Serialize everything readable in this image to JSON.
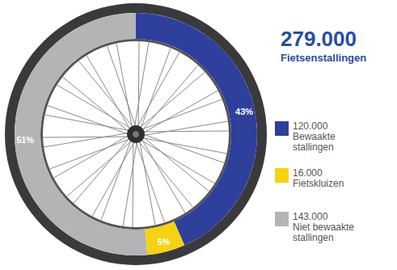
{
  "chart_data": {
    "type": "pie",
    "total": {
      "value": 279000,
      "label": "279.000"
    },
    "title": "Fietsenstallingen",
    "categories": [
      "Bewaakte stallingen",
      "Fietskluizen",
      "Niet bewaakte stallingen"
    ],
    "values": [
      43,
      5,
      51
    ],
    "value_labels": [
      "43%",
      "5%",
      "51%"
    ],
    "counts": [
      {
        "value": 120000,
        "label": "120.000"
      },
      {
        "value": 16000,
        "label": "16.000"
      },
      {
        "value": 143000,
        "label": "143.000"
      }
    ],
    "colors": [
      "#2e3f9c",
      "#f5d312",
      "#b4b4b6"
    ],
    "data_labels": true
  }
}
